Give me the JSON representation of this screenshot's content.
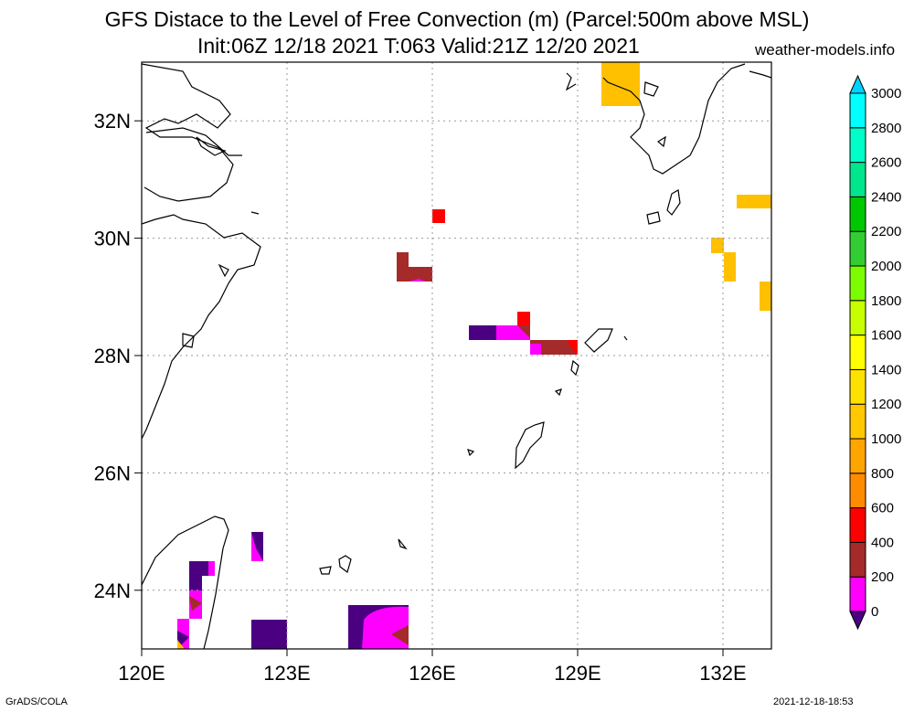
{
  "title": {
    "line1": "GFS Distace to the Level of Free Convection (m) (Parcel:500m above MSL)",
    "line2": "Init:06Z 12/18 2021 T:063 Valid:21Z 12/20 2021",
    "site": "weather-models.info"
  },
  "footer": {
    "left": "GrADS/COLA",
    "right": "2021-12-18-18:53"
  },
  "map": {
    "lon_range": [
      120,
      133
    ],
    "lat_range": [
      23,
      33
    ],
    "lon_ticks": [
      {
        "value": 120,
        "label": "120E"
      },
      {
        "value": 123,
        "label": "123E"
      },
      {
        "value": 126,
        "label": "126E"
      },
      {
        "value": 129,
        "label": "129E"
      },
      {
        "value": 132,
        "label": "132E"
      }
    ],
    "lat_ticks": [
      {
        "value": 24,
        "label": "24N"
      },
      {
        "value": 26,
        "label": "26N"
      },
      {
        "value": 28,
        "label": "28N"
      },
      {
        "value": 30,
        "label": "30N"
      },
      {
        "value": 32,
        "label": "32N"
      }
    ],
    "grid": "dotted"
  },
  "colorbar": {
    "levels": [
      "0",
      "200",
      "400",
      "600",
      "800",
      "1000",
      "1200",
      "1400",
      "1600",
      "1800",
      "2000",
      "2200",
      "2400",
      "2600",
      "2800",
      "3000"
    ],
    "colors": [
      "#4b0082",
      "#ff00ff",
      "#a52a2a",
      "#ff0000",
      "#ff8c00",
      "#ffa500",
      "#ffc800",
      "#ffe100",
      "#ffff00",
      "#c8ff00",
      "#7cfc00",
      "#32cd32",
      "#00c800",
      "#00e68c",
      "#00ffc8",
      "#00ffff",
      "#00d2ff"
    ]
  }
}
